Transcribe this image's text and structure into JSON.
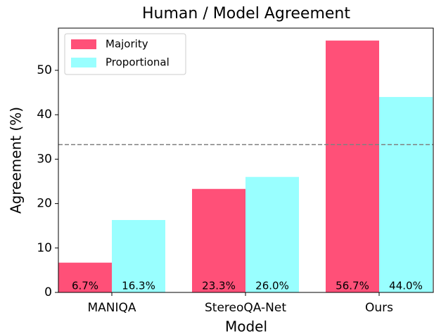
{
  "chart_data": {
    "type": "bar",
    "title": "Human / Model Agreement",
    "x_label": "Model",
    "y_label": "Agreement (%)",
    "categories": [
      "MANIQA",
      "StereoQA-Net",
      "Ours"
    ],
    "series": [
      {
        "name": "Majority",
        "color": "#ff5078",
        "values": [
          6.7,
          23.3,
          56.7
        ],
        "value_labels": [
          "6.7%",
          "23.3%",
          "56.7%"
        ]
      },
      {
        "name": "Proportional",
        "color": "#99ffff",
        "values": [
          16.3,
          26.0,
          44.0
        ],
        "value_labels": [
          "16.3%",
          "26.0%",
          "44.0%"
        ]
      }
    ],
    "reference_line": 33.3,
    "ylim": [
      0,
      59.5
    ],
    "yticks": [
      0,
      10,
      20,
      30,
      40,
      50
    ],
    "legend": "upper left"
  }
}
